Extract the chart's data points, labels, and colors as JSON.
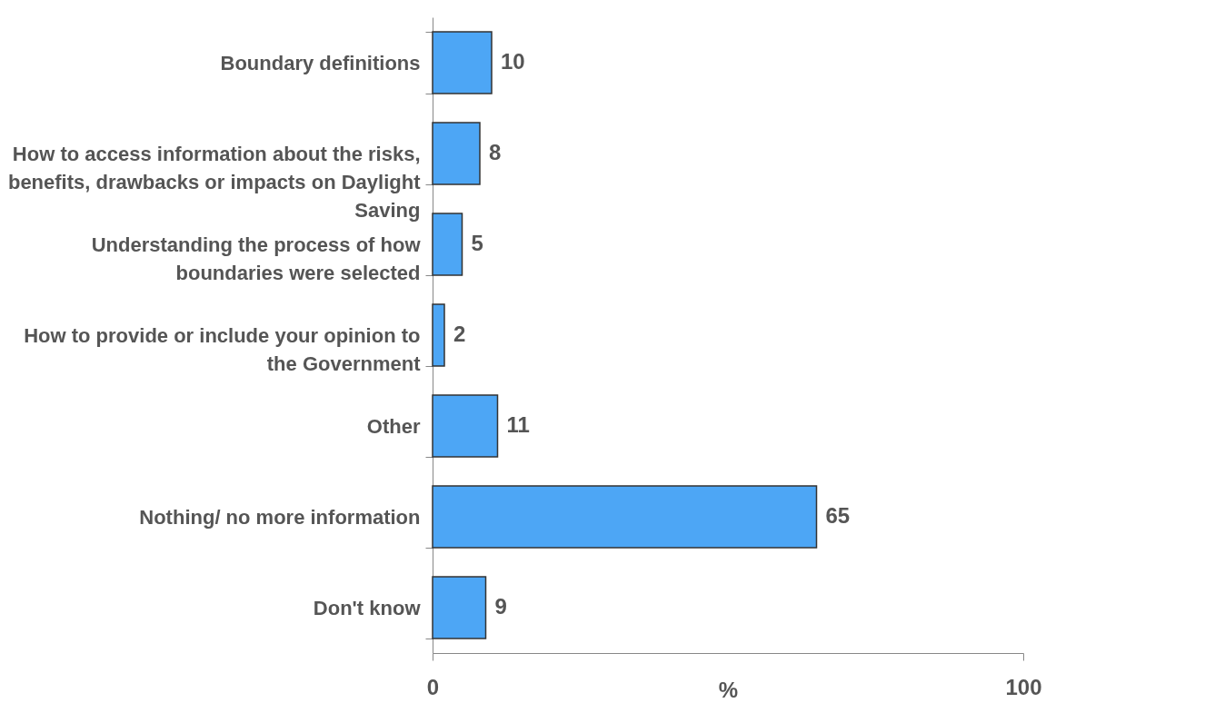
{
  "chart_data": {
    "type": "bar",
    "orientation": "horizontal",
    "xlabel": "%",
    "categories": [
      "Boundary definitions",
      "How to access information about the risks, benefits, drawbacks or impacts on Daylight Saving",
      "Understanding the process of how boundaries were selected",
      "How to provide or include your opinion to the Government",
      "Other",
      "Nothing/ no more information",
      "Don't know"
    ],
    "values": [
      10,
      8,
      5,
      2,
      11,
      65,
      9
    ],
    "color": "#4da6f5",
    "xlim": [
      0,
      100
    ],
    "xticks": [
      0,
      100
    ],
    "data_labels": true
  }
}
